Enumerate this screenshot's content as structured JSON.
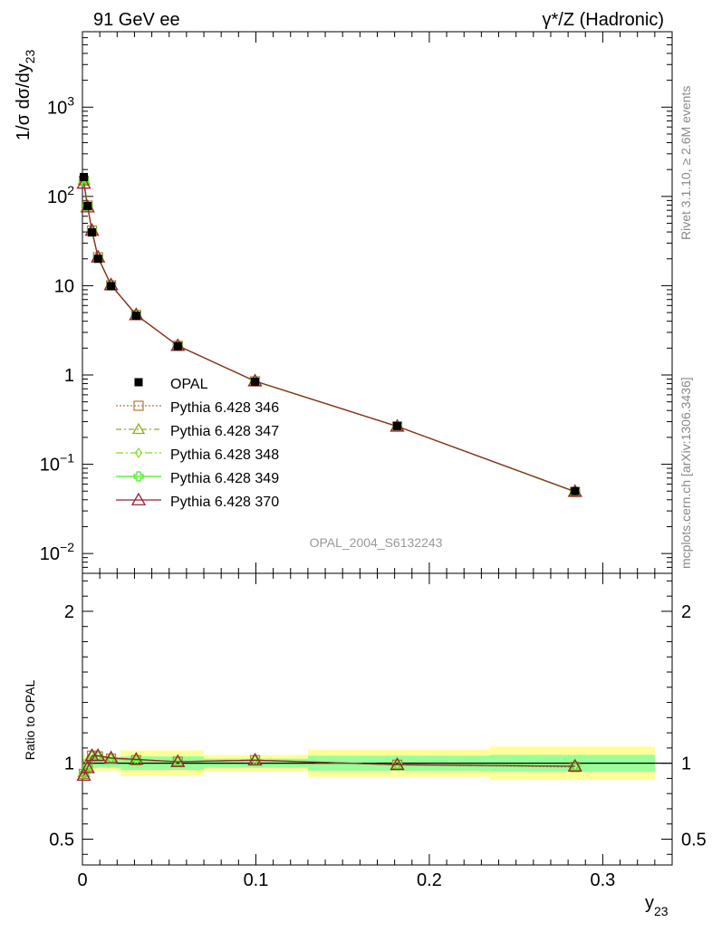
{
  "header": {
    "left": "91 GeV ee",
    "right": "γ*/Z (Hadronic)"
  },
  "side_labels": {
    "rivet": "Rivet 3.1.10, ≥ 2.6M events",
    "mcplots": "mcplots.cern.ch [arXiv:1306.3436]"
  },
  "watermark": "OPAL_2004_S6132243",
  "colors": {
    "data": "#000000",
    "s346": "#b07a3c",
    "s347": "#9aaa1a",
    "s348": "#88dd22",
    "s349": "#44ee22",
    "s370": "#992233",
    "band_inner": "#99ff99",
    "band_outer": "#ffff99"
  },
  "chart_data": [
    {
      "type": "line",
      "panel": "main",
      "ylabel": "1/σ dσ/dy23",
      "yscale": "log",
      "ylim": [
        0.006,
        7000
      ],
      "xlim": [
        0,
        0.34
      ],
      "yticklabels": [
        "10^-2",
        "10^-1",
        "1",
        "10",
        "10^2",
        "10^3"
      ],
      "yticks": [
        0.01,
        0.1,
        1,
        10,
        100,
        1000
      ],
      "x": [
        0.0008,
        0.003,
        0.0055,
        0.009,
        0.0165,
        0.031,
        0.055,
        0.0995,
        0.1815,
        0.284
      ],
      "series": [
        {
          "name": "OPAL",
          "marker": "square",
          "values": [
            165,
            78,
            39.5,
            20,
            9.9,
            4.6,
            2.1,
            0.84,
            0.268,
            0.05
          ]
        },
        {
          "name": "Pythia 6.428 346",
          "marker": "open-square",
          "values": [
            150,
            79,
            41.5,
            20.8,
            10.1,
            4.7,
            2.12,
            0.85,
            0.265,
            0.049
          ]
        },
        {
          "name": "Pythia 6.428 347",
          "marker": "open-triangle",
          "values": [
            152,
            78.5,
            41.2,
            20.7,
            10.1,
            4.7,
            2.12,
            0.85,
            0.266,
            0.049
          ]
        },
        {
          "name": "Pythia 6.428 348",
          "marker": "open-diamond",
          "values": [
            153,
            78.8,
            41.3,
            20.8,
            10.1,
            4.7,
            2.12,
            0.85,
            0.266,
            0.049
          ]
        },
        {
          "name": "Pythia 6.428 349",
          "marker": "open-cross",
          "values": [
            150,
            78,
            41,
            20.7,
            10.1,
            4.7,
            2.12,
            0.85,
            0.266,
            0.049
          ]
        },
        {
          "name": "Pythia 6.428 370",
          "marker": "open-triangle",
          "values": [
            140,
            76,
            41.5,
            20.9,
            10.2,
            4.72,
            2.13,
            0.855,
            0.266,
            0.0495
          ]
        }
      ],
      "legend_position": "middle-left"
    },
    {
      "type": "line",
      "panel": "ratio",
      "ylabel": "Ratio to OPAL",
      "xlabel": "y23",
      "ylim": [
        0.33,
        2.25
      ],
      "xlim": [
        0,
        0.34
      ],
      "yticks": [
        0.5,
        1,
        2
      ],
      "yticklabels": [
        "0.5",
        "1",
        "2"
      ],
      "xticks": [
        0,
        0.1,
        0.2,
        0.3
      ],
      "xticklabels": [
        "0",
        "0.1",
        "0.2",
        "0.3"
      ],
      "bins": [
        {
          "lo": 0.0,
          "hi": 0.0015,
          "inner": 0.03,
          "outer": 0.06
        },
        {
          "lo": 0.0015,
          "hi": 0.004,
          "inner": 0.025,
          "outer": 0.05
        },
        {
          "lo": 0.004,
          "hi": 0.007,
          "inner": 0.03,
          "outer": 0.05
        },
        {
          "lo": 0.007,
          "hi": 0.011,
          "inner": 0.03,
          "outer": 0.05
        },
        {
          "lo": 0.011,
          "hi": 0.022,
          "inner": 0.03,
          "outer": 0.05
        },
        {
          "lo": 0.022,
          "hi": 0.04,
          "inner": 0.045,
          "outer": 0.085
        },
        {
          "lo": 0.04,
          "hi": 0.07,
          "inner": 0.045,
          "outer": 0.085
        },
        {
          "lo": 0.07,
          "hi": 0.13,
          "inner": 0.03,
          "outer": 0.055
        },
        {
          "lo": 0.13,
          "hi": 0.235,
          "inner": 0.05,
          "outer": 0.09
        },
        {
          "lo": 0.235,
          "hi": 0.33,
          "inner": 0.055,
          "outer": 0.11
        }
      ],
      "x": [
        0.0008,
        0.003,
        0.0055,
        0.009,
        0.0165,
        0.031,
        0.055,
        0.0995,
        0.1815,
        0.284
      ],
      "series": [
        {
          "name": "Pythia 6.428 346",
          "values": [
            0.93,
            0.98,
            1.05,
            1.045,
            1.03,
            1.02,
            1.01,
            1.02,
            0.99,
            0.975
          ]
        },
        {
          "name": "Pythia 6.428 347",
          "values": [
            0.94,
            0.975,
            1.045,
            1.045,
            1.03,
            1.02,
            1.01,
            1.02,
            0.99,
            0.98
          ]
        },
        {
          "name": "Pythia 6.428 348",
          "values": [
            0.945,
            0.98,
            1.05,
            1.045,
            1.03,
            1.02,
            1.01,
            1.02,
            0.99,
            0.98
          ]
        },
        {
          "name": "Pythia 6.428 349",
          "values": [
            0.935,
            0.975,
            1.045,
            1.045,
            1.03,
            1.02,
            1.01,
            1.02,
            0.99,
            0.98
          ]
        },
        {
          "name": "Pythia 6.428 370",
          "values": [
            0.92,
            0.97,
            1.05,
            1.05,
            1.035,
            1.025,
            1.01,
            1.02,
            0.99,
            0.98
          ]
        }
      ]
    }
  ]
}
